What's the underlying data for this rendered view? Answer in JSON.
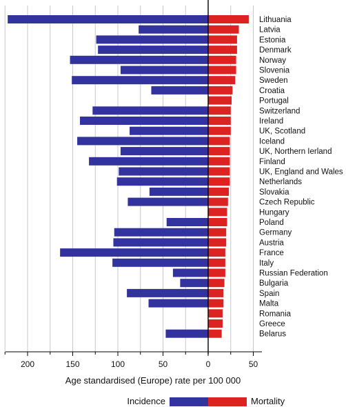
{
  "chart_data": {
    "type": "bar",
    "orientation": "horizontal-diverging",
    "xlabel": "Age standardised (Europe) rate per 100 000",
    "x_ticks": [
      "200",
      "150",
      "100",
      "50",
      "0",
      "50"
    ],
    "xlim": [
      -230,
      50
    ],
    "grid": true,
    "legend_position": "bottom",
    "colors": {
      "incidence": "#3333a0",
      "mortality": "#dd2222"
    },
    "categories": [
      "Lithuania",
      "Latvia",
      "Estonia",
      "Denmark",
      "Norway",
      "Slovenia",
      "Sweden",
      "Croatia",
      "Portugal",
      "Switzerland",
      "Ireland",
      "UK, Scotland",
      "Iceland",
      "UK, Northern Ierland",
      "Finland",
      "UK, England and Wales",
      "Netherlands",
      "Slovakia",
      "Czech Republic",
      "Hungary",
      "Poland",
      "Germany",
      "Austria",
      "France",
      "Italy",
      "Russian Federation",
      "Bulgaria",
      "Spain",
      "Malta",
      "Romania",
      "Greece",
      "Belarus"
    ],
    "series": [
      {
        "name": "Incidence",
        "values": [
          222,
          77,
          124,
          122,
          153,
          97,
          151,
          63,
          0,
          128,
          142,
          87,
          145,
          97,
          132,
          99,
          101,
          65,
          89,
          0,
          46,
          104,
          105,
          164,
          106,
          39,
          31,
          90,
          66,
          0,
          0,
          47
        ]
      },
      {
        "name": "Mortality",
        "values": [
          45,
          34,
          32,
          32,
          31,
          31,
          30,
          27,
          26,
          25,
          25,
          25,
          24,
          24,
          24,
          24,
          24,
          23,
          22,
          21,
          21,
          20,
          20,
          19,
          19,
          19,
          18,
          17,
          17,
          16,
          16,
          15
        ]
      }
    ]
  },
  "legend": {
    "incidence_label": "Incidence",
    "mortality_label": "Mortality"
  }
}
